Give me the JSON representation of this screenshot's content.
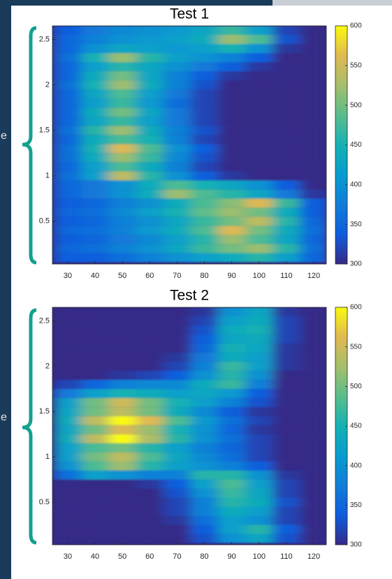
{
  "slide": {
    "cut_labels": [
      "e",
      "e"
    ]
  },
  "chart_data": [
    {
      "type": "heatmap",
      "title": "Test 1",
      "colormap": "parula",
      "x": [
        30,
        40,
        50,
        60,
        70,
        80,
        90,
        100,
        110,
        120
      ],
      "y": [
        0.1,
        0.2,
        0.3,
        0.4,
        0.5,
        0.6,
        0.7,
        0.8,
        0.9,
        1.0,
        1.1,
        1.2,
        1.3,
        1.4,
        1.5,
        1.6,
        1.7,
        1.8,
        1.9,
        2.0,
        2.1,
        2.2,
        2.3,
        2.4,
        2.5,
        2.6
      ],
      "z": [
        [
          340,
          340,
          360,
          380,
          400,
          420,
          440,
          460,
          420,
          350
        ],
        [
          350,
          360,
          380,
          400,
          430,
          470,
          500,
          520,
          460,
          360
        ],
        [
          340,
          350,
          370,
          390,
          420,
          460,
          520,
          480,
          430,
          350
        ],
        [
          350,
          360,
          380,
          410,
          440,
          480,
          560,
          500,
          440,
          360
        ],
        [
          340,
          350,
          380,
          400,
          430,
          470,
          500,
          540,
          460,
          350
        ],
        [
          350,
          360,
          390,
          420,
          450,
          490,
          520,
          500,
          440,
          340
        ],
        [
          340,
          350,
          380,
          400,
          440,
          480,
          510,
          560,
          470,
          340
        ],
        [
          350,
          370,
          400,
          440,
          520,
          480,
          460,
          430,
          370,
          310
        ],
        [
          350,
          370,
          400,
          440,
          480,
          450,
          430,
          400,
          340,
          300
        ],
        [
          360,
          420,
          540,
          460,
          400,
          340,
          310,
          300,
          300,
          300
        ],
        [
          350,
          420,
          480,
          440,
          380,
          320,
          300,
          300,
          300,
          300
        ],
        [
          360,
          440,
          520,
          470,
          390,
          330,
          300,
          300,
          300,
          300
        ],
        [
          360,
          450,
          560,
          480,
          400,
          340,
          300,
          300,
          300,
          300
        ],
        [
          350,
          440,
          480,
          450,
          380,
          320,
          300,
          300,
          300,
          300
        ],
        [
          360,
          460,
          520,
          440,
          380,
          330,
          300,
          300,
          300,
          300
        ],
        [
          350,
          430,
          470,
          420,
          370,
          320,
          300,
          300,
          300,
          300
        ],
        [
          350,
          440,
          500,
          430,
          370,
          320,
          300,
          300,
          300,
          300
        ],
        [
          350,
          420,
          470,
          410,
          360,
          320,
          300,
          300,
          300,
          300
        ],
        [
          350,
          430,
          480,
          420,
          370,
          320,
          300,
          300,
          300,
          300
        ],
        [
          360,
          450,
          520,
          440,
          380,
          330,
          300,
          300,
          300,
          300
        ],
        [
          350,
          440,
          500,
          430,
          380,
          340,
          310,
          300,
          300,
          300
        ],
        [
          350,
          420,
          460,
          430,
          400,
          370,
          340,
          310,
          300,
          300
        ],
        [
          360,
          450,
          520,
          460,
          420,
          400,
          380,
          340,
          300,
          300
        ],
        [
          350,
          400,
          430,
          420,
          410,
          420,
          450,
          400,
          310,
          300
        ],
        [
          350,
          380,
          400,
          410,
          420,
          440,
          520,
          480,
          330,
          300
        ],
        [
          340,
          370,
          390,
          400,
          410,
          430,
          470,
          420,
          320,
          300
        ]
      ],
      "xlim": [
        24.4,
        124.6
      ],
      "ylim": [
        0.03,
        2.65
      ],
      "xticks": [
        30,
        40,
        50,
        60,
        70,
        80,
        90,
        100,
        110,
        120
      ],
      "yticks": [
        0.5,
        1,
        1.5,
        2,
        2.5
      ],
      "clim": [
        300,
        600
      ],
      "cticks": [
        300,
        350,
        400,
        450,
        500,
        550,
        600
      ]
    },
    {
      "type": "heatmap",
      "title": "Test 2",
      "colormap": "parula",
      "x": [
        30,
        40,
        50,
        60,
        70,
        80,
        90,
        100,
        110,
        120
      ],
      "y": [
        0.1,
        0.2,
        0.3,
        0.4,
        0.5,
        0.6,
        0.7,
        0.8,
        0.9,
        1.0,
        1.1,
        1.2,
        1.3,
        1.4,
        1.5,
        1.6,
        1.7,
        1.8,
        1.9,
        2.0,
        2.1,
        2.2,
        2.3,
        2.4,
        2.5,
        2.6
      ],
      "z": [
        [
          300,
          300,
          300,
          300,
          300,
          330,
          400,
          430,
          330,
          300
        ],
        [
          300,
          300,
          300,
          300,
          300,
          340,
          420,
          460,
          340,
          300
        ],
        [
          300,
          300,
          300,
          300,
          310,
          360,
          420,
          400,
          320,
          300
        ],
        [
          300,
          300,
          300,
          300,
          320,
          380,
          440,
          420,
          320,
          300
        ],
        [
          300,
          300,
          300,
          300,
          320,
          380,
          460,
          440,
          330,
          300
        ],
        [
          300,
          300,
          300,
          300,
          330,
          400,
          470,
          430,
          320,
          300
        ],
        [
          300,
          300,
          300,
          310,
          340,
          420,
          480,
          420,
          320,
          300
        ],
        [
          360,
          420,
          400,
          380,
          380,
          460,
          460,
          400,
          310,
          300
        ],
        [
          400,
          480,
          520,
          460,
          420,
          400,
          380,
          340,
          300,
          300
        ],
        [
          420,
          500,
          540,
          480,
          430,
          390,
          360,
          320,
          300,
          300
        ],
        [
          420,
          480,
          500,
          460,
          420,
          380,
          350,
          320,
          300,
          300
        ],
        [
          440,
          540,
          600,
          530,
          460,
          400,
          360,
          320,
          300,
          300
        ],
        [
          430,
          500,
          560,
          520,
          450,
          400,
          350,
          310,
          300,
          300
        ],
        [
          440,
          540,
          600,
          560,
          480,
          410,
          360,
          320,
          300,
          300
        ],
        [
          430,
          500,
          540,
          500,
          440,
          390,
          340,
          310,
          300,
          300
        ],
        [
          420,
          500,
          550,
          500,
          450,
          420,
          380,
          330,
          300,
          300
        ],
        [
          370,
          420,
          450,
          440,
          420,
          430,
          410,
          340,
          300,
          300
        ],
        [
          320,
          350,
          380,
          390,
          390,
          440,
          470,
          380,
          300,
          300
        ],
        [
          300,
          300,
          310,
          320,
          340,
          400,
          460,
          400,
          300,
          300
        ],
        [
          300,
          300,
          300,
          300,
          320,
          380,
          470,
          420,
          310,
          300
        ],
        [
          300,
          300,
          300,
          300,
          310,
          370,
          440,
          420,
          310,
          300
        ],
        [
          300,
          300,
          300,
          300,
          300,
          350,
          450,
          430,
          310,
          300
        ],
        [
          300,
          300,
          300,
          300,
          300,
          340,
          430,
          440,
          320,
          300
        ],
        [
          300,
          300,
          300,
          300,
          300,
          330,
          440,
          450,
          320,
          300
        ],
        [
          300,
          300,
          300,
          300,
          300,
          320,
          420,
          440,
          320,
          300
        ],
        [
          300,
          300,
          300,
          300,
          300,
          310,
          400,
          430,
          310,
          300
        ]
      ],
      "xlim": [
        24.4,
        124.6
      ],
      "ylim": [
        0.03,
        2.65
      ],
      "xticks": [
        30,
        40,
        50,
        60,
        70,
        80,
        90,
        100,
        110,
        120
      ],
      "yticks": [
        0.5,
        1,
        1.5,
        2,
        2.5
      ],
      "clim": [
        300,
        600
      ],
      "cticks": [
        300,
        350,
        400,
        450,
        500,
        550,
        600
      ]
    }
  ]
}
